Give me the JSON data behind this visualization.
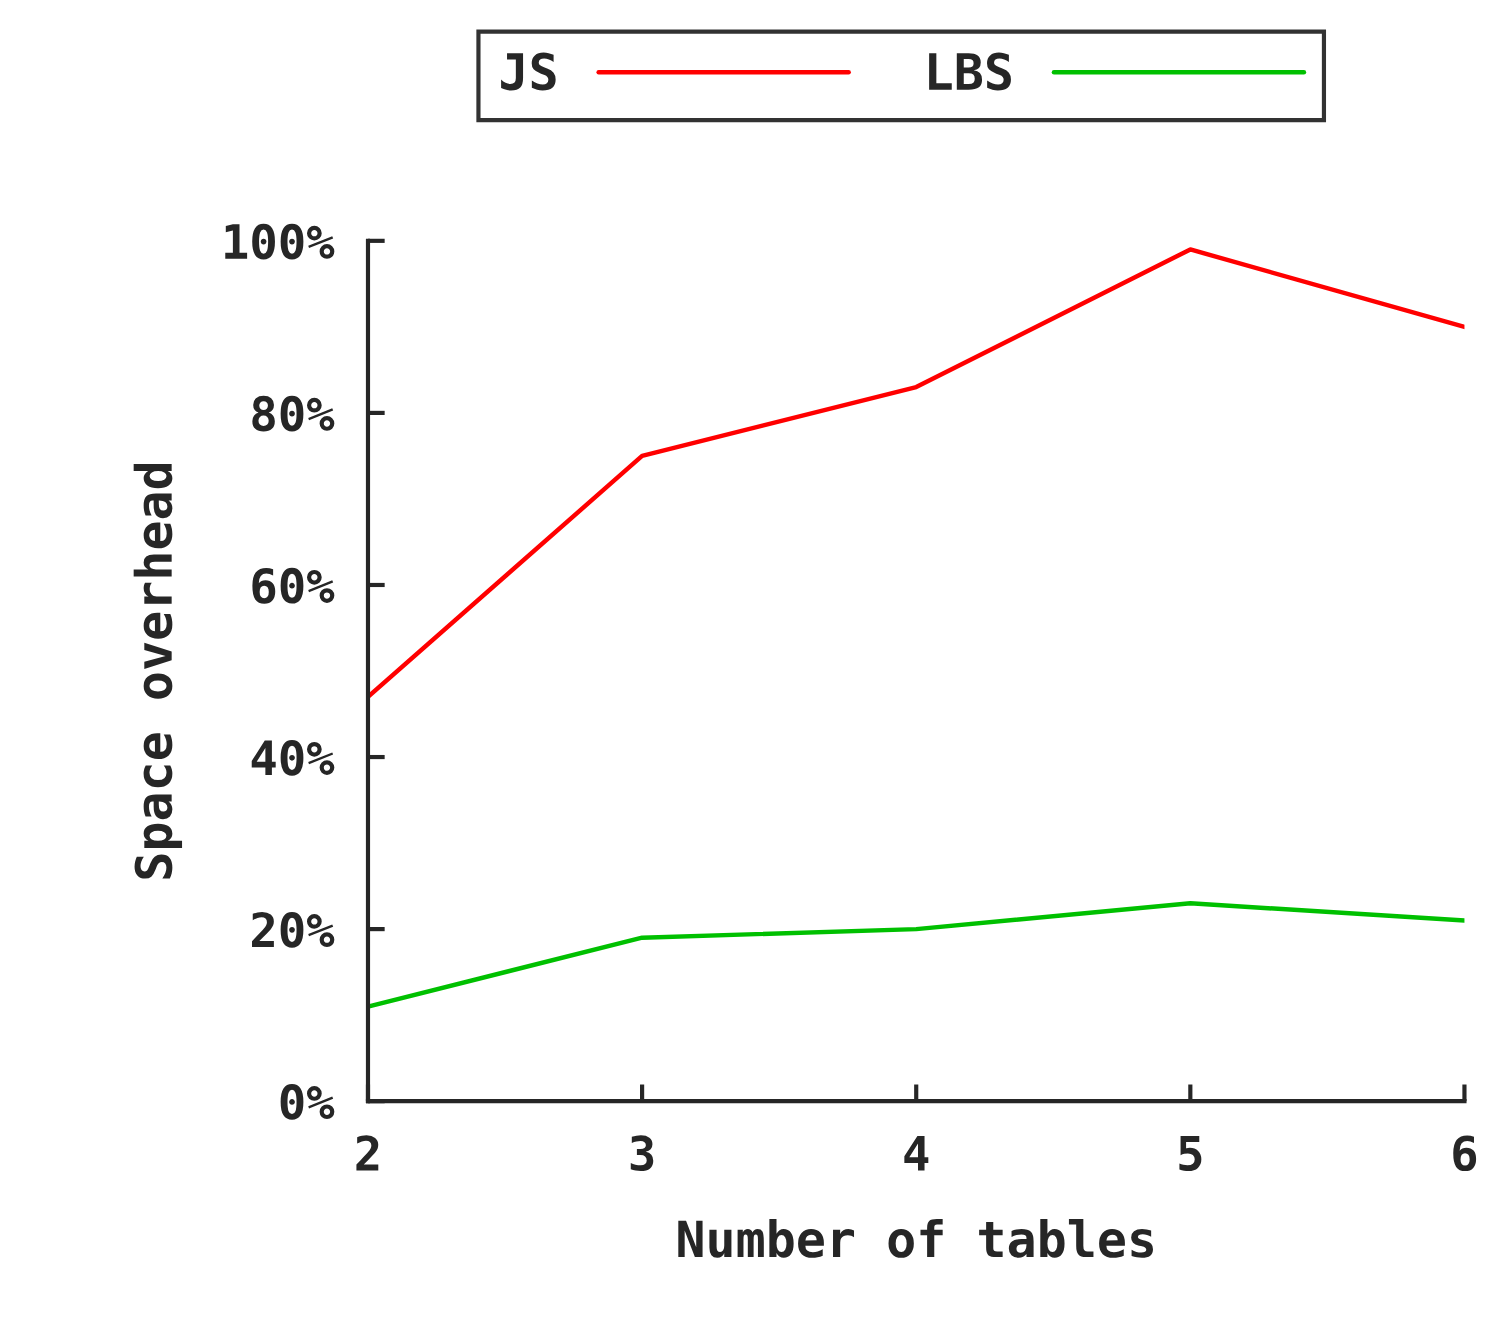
{
  "chart_data": {
    "type": "line",
    "xlabel": "Number of tables",
    "ylabel": "Space overhead",
    "x": [
      2,
      3,
      4,
      5,
      6
    ],
    "series": [
      {
        "name": "JS",
        "color": "#ff0000",
        "values": [
          47,
          75,
          83,
          99,
          90
        ]
      },
      {
        "name": "LBS",
        "color": "#00c000",
        "values": [
          11,
          19,
          20,
          23,
          21
        ]
      }
    ],
    "xlim": [
      2,
      6
    ],
    "xticks": [
      2,
      3,
      4,
      5,
      6
    ],
    "ylim": [
      0,
      100
    ],
    "yticks": [
      {
        "value": 0,
        "label": "0%"
      },
      {
        "value": 20,
        "label": "20%"
      },
      {
        "value": 40,
        "label": "40%"
      },
      {
        "value": 60,
        "label": "60%"
      },
      {
        "value": 80,
        "label": "80%"
      },
      {
        "value": 100,
        "label": "100%"
      }
    ],
    "grid": false,
    "legend": "top",
    "marker": "none",
    "line_style": "solid"
  }
}
